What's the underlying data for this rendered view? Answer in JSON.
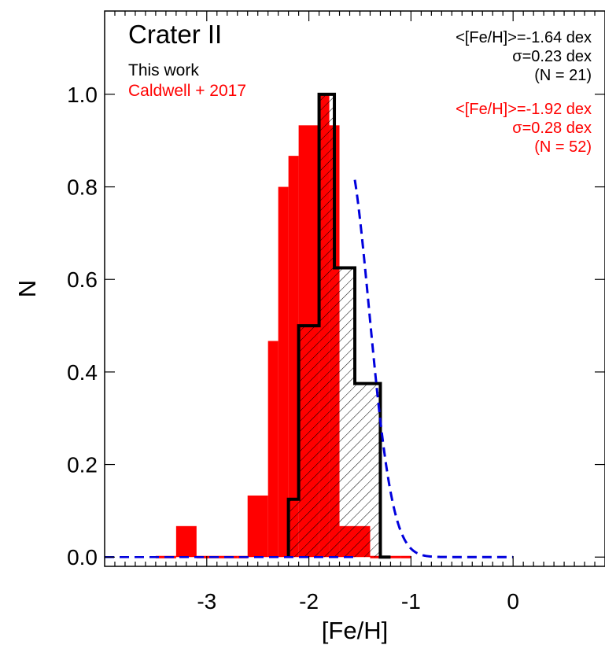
{
  "chart_data": {
    "type": "bar",
    "title": "Crater II",
    "xlabel": "[Fe/H]",
    "ylabel": "N",
    "xlim": [
      -4.0,
      0.9
    ],
    "ylim": [
      -0.02,
      1.18
    ],
    "xticks": [
      {
        "value": -3,
        "label": "-3"
      },
      {
        "value": -2,
        "label": "-2"
      },
      {
        "value": -1,
        "label": "-1"
      },
      {
        "value": 0,
        "label": "0"
      }
    ],
    "yticks": [
      {
        "value": 0.0,
        "label": "0.0"
      },
      {
        "value": 0.2,
        "label": "0.2"
      },
      {
        "value": 0.4,
        "label": "0.4"
      },
      {
        "value": 0.6,
        "label": "0.6"
      },
      {
        "value": 0.8,
        "label": "0.8"
      },
      {
        "value": 1.0,
        "label": "1.0"
      }
    ],
    "legend": [
      {
        "label": "This work",
        "color": "#000000"
      },
      {
        "label": "Caldwell + 2017",
        "color": "#ff0000"
      }
    ],
    "stats": [
      {
        "color": "#000000",
        "lines": [
          "<[Fe/H]>=-1.64 dex",
          "σ=0.23 dex",
          "(N = 21)"
        ]
      },
      {
        "color": "#ff0000",
        "lines": [
          "<[Fe/H]>=-1.92 dex",
          "σ=0.28 dex",
          "(N = 52)"
        ]
      }
    ],
    "series": [
      {
        "name": "Caldwell + 2017",
        "style": "filled",
        "color": "#ff0000",
        "bin_edges": [
          -3.5,
          -3.3,
          -3.1,
          -2.9,
          -2.7,
          -2.6,
          -2.4,
          -2.3,
          -2.2,
          -2.1,
          -1.9,
          -1.8,
          -1.7,
          -1.6,
          -1.5,
          -1.4,
          -1.3,
          -1.2,
          -1.1,
          -1.0
        ],
        "values": [
          0.0,
          0.067,
          0.0,
          0.0,
          0.0,
          0.133,
          0.467,
          0.8,
          0.867,
          0.933,
          1.0,
          0.933,
          0.067,
          0.067,
          0.067,
          0.0,
          0.0,
          0.0,
          0.0
        ]
      },
      {
        "name": "This work",
        "style": "hatched-outline",
        "color": "#000000",
        "bin_edges": [
          -2.2,
          -2.1,
          -1.9,
          -1.75,
          -1.55,
          -1.4,
          -1.3,
          -1.2
        ],
        "values": [
          0.125,
          0.5,
          1.0,
          0.625,
          0.375,
          0.375,
          0.0
        ]
      },
      {
        "name": "",
        "style": "dashed-curve",
        "color": "#0000dd",
        "type": "gaussian-fit",
        "mean": -1.64,
        "sigma": 0.23,
        "peak": 0.88,
        "x_start": -1.55,
        "x_range": [
          -4.0,
          0.0
        ]
      }
    ]
  }
}
